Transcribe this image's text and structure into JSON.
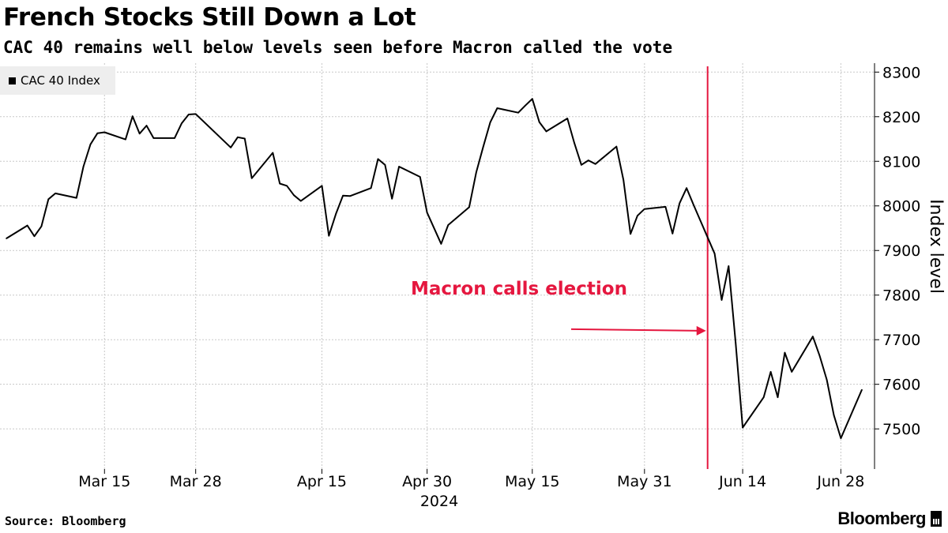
{
  "chart_data": {
    "type": "line",
    "title": "French Stocks Still Down a Lot",
    "subtitle": "CAC 40 remains well below levels seen before Macron called the vote",
    "ylabel": "Index level",
    "xlabel": "2024",
    "ylim": [
      7410,
      8320
    ],
    "yticks": [
      7500,
      7600,
      7700,
      7800,
      7900,
      8000,
      8100,
      8200,
      8300
    ],
    "grid": true,
    "legend_position": "top-left",
    "x_ticks": [
      {
        "date": "2024-03-15",
        "label": "Mar 15"
      },
      {
        "date": "2024-03-28",
        "label": "Mar 28"
      },
      {
        "date": "2024-04-15",
        "label": "Apr 15"
      },
      {
        "date": "2024-04-30",
        "label": "Apr 30"
      },
      {
        "date": "2024-05-15",
        "label": "May 15"
      },
      {
        "date": "2024-05-31",
        "label": "May 31"
      },
      {
        "date": "2024-06-14",
        "label": "Jun 14"
      },
      {
        "date": "2024-06-28",
        "label": "Jun 28"
      }
    ],
    "x_range": [
      "2024-03-01",
      "2024-07-01"
    ],
    "series": [
      {
        "name": "CAC 40 Index",
        "color": "#000000",
        "points": [
          [
            "2024-03-01",
            7927
          ],
          [
            "2024-03-04",
            7956
          ],
          [
            "2024-03-05",
            7932
          ],
          [
            "2024-03-06",
            7954
          ],
          [
            "2024-03-07",
            8015
          ],
          [
            "2024-03-08",
            8028
          ],
          [
            "2024-03-11",
            8018
          ],
          [
            "2024-03-12",
            8088
          ],
          [
            "2024-03-13",
            8138
          ],
          [
            "2024-03-14",
            8163
          ],
          [
            "2024-03-15",
            8165
          ],
          [
            "2024-03-18",
            8149
          ],
          [
            "2024-03-19",
            8201
          ],
          [
            "2024-03-20",
            8162
          ],
          [
            "2024-03-21",
            8180
          ],
          [
            "2024-03-22",
            8152
          ],
          [
            "2024-03-25",
            8152
          ],
          [
            "2024-03-26",
            8185
          ],
          [
            "2024-03-27",
            8205
          ],
          [
            "2024-03-28",
            8206
          ],
          [
            "2024-04-02",
            8131
          ],
          [
            "2024-04-03",
            8154
          ],
          [
            "2024-04-04",
            8151
          ],
          [
            "2024-04-05",
            8062
          ],
          [
            "2024-04-08",
            8119
          ],
          [
            "2024-04-09",
            8050
          ],
          [
            "2024-04-10",
            8045
          ],
          [
            "2024-04-11",
            8024
          ],
          [
            "2024-04-12",
            8011
          ],
          [
            "2024-04-15",
            8045
          ],
          [
            "2024-04-16",
            7933
          ],
          [
            "2024-04-17",
            7982
          ],
          [
            "2024-04-18",
            8023
          ],
          [
            "2024-04-19",
            8022
          ],
          [
            "2024-04-22",
            8040
          ],
          [
            "2024-04-23",
            8105
          ],
          [
            "2024-04-24",
            8092
          ],
          [
            "2024-04-25",
            8016
          ],
          [
            "2024-04-26",
            8088
          ],
          [
            "2024-04-29",
            8065
          ],
          [
            "2024-04-30",
            7985
          ],
          [
            "2024-05-02",
            7915
          ],
          [
            "2024-05-03",
            7957
          ],
          [
            "2024-05-06",
            7997
          ],
          [
            "2024-05-07",
            8075
          ],
          [
            "2024-05-08",
            8132
          ],
          [
            "2024-05-09",
            8187
          ],
          [
            "2024-05-10",
            8219
          ],
          [
            "2024-05-13",
            8209
          ],
          [
            "2024-05-14",
            8225
          ],
          [
            "2024-05-15",
            8240
          ],
          [
            "2024-05-16",
            8188
          ],
          [
            "2024-05-17",
            8167
          ],
          [
            "2024-05-20",
            8196
          ],
          [
            "2024-05-21",
            8141
          ],
          [
            "2024-05-22",
            8092
          ],
          [
            "2024-05-23",
            8102
          ],
          [
            "2024-05-24",
            8094
          ],
          [
            "2024-05-27",
            8133
          ],
          [
            "2024-05-28",
            8058
          ],
          [
            "2024-05-29",
            7937
          ],
          [
            "2024-05-30",
            7978
          ],
          [
            "2024-05-31",
            7993
          ],
          [
            "2024-06-03",
            7998
          ],
          [
            "2024-06-04",
            7938
          ],
          [
            "2024-06-05",
            8006
          ],
          [
            "2024-06-06",
            8040
          ],
          [
            "2024-06-07",
            8002
          ],
          [
            "2024-06-10",
            7893
          ],
          [
            "2024-06-11",
            7789
          ],
          [
            "2024-06-12",
            7865
          ],
          [
            "2024-06-13",
            7693
          ],
          [
            "2024-06-14",
            7503
          ],
          [
            "2024-06-17",
            7571
          ],
          [
            "2024-06-18",
            7628
          ],
          [
            "2024-06-19",
            7571
          ],
          [
            "2024-06-20",
            7671
          ],
          [
            "2024-06-21",
            7628
          ],
          [
            "2024-06-24",
            7707
          ],
          [
            "2024-06-25",
            7663
          ],
          [
            "2024-06-26",
            7610
          ],
          [
            "2024-06-27",
            7531
          ],
          [
            "2024-06-28",
            7479
          ],
          [
            "2024-07-01",
            7588
          ]
        ]
      }
    ],
    "annotations": [
      {
        "type": "vertical_line",
        "date": "2024-06-09",
        "color": "#e5173f"
      },
      {
        "type": "arrow_label",
        "text": "Macron calls election",
        "color": "#e5173f",
        "value": 7720
      }
    ]
  },
  "legend": {
    "label": "CAC 40 Index"
  },
  "footer": {
    "source": "Source: Bloomberg",
    "brand": "Bloomberg"
  }
}
